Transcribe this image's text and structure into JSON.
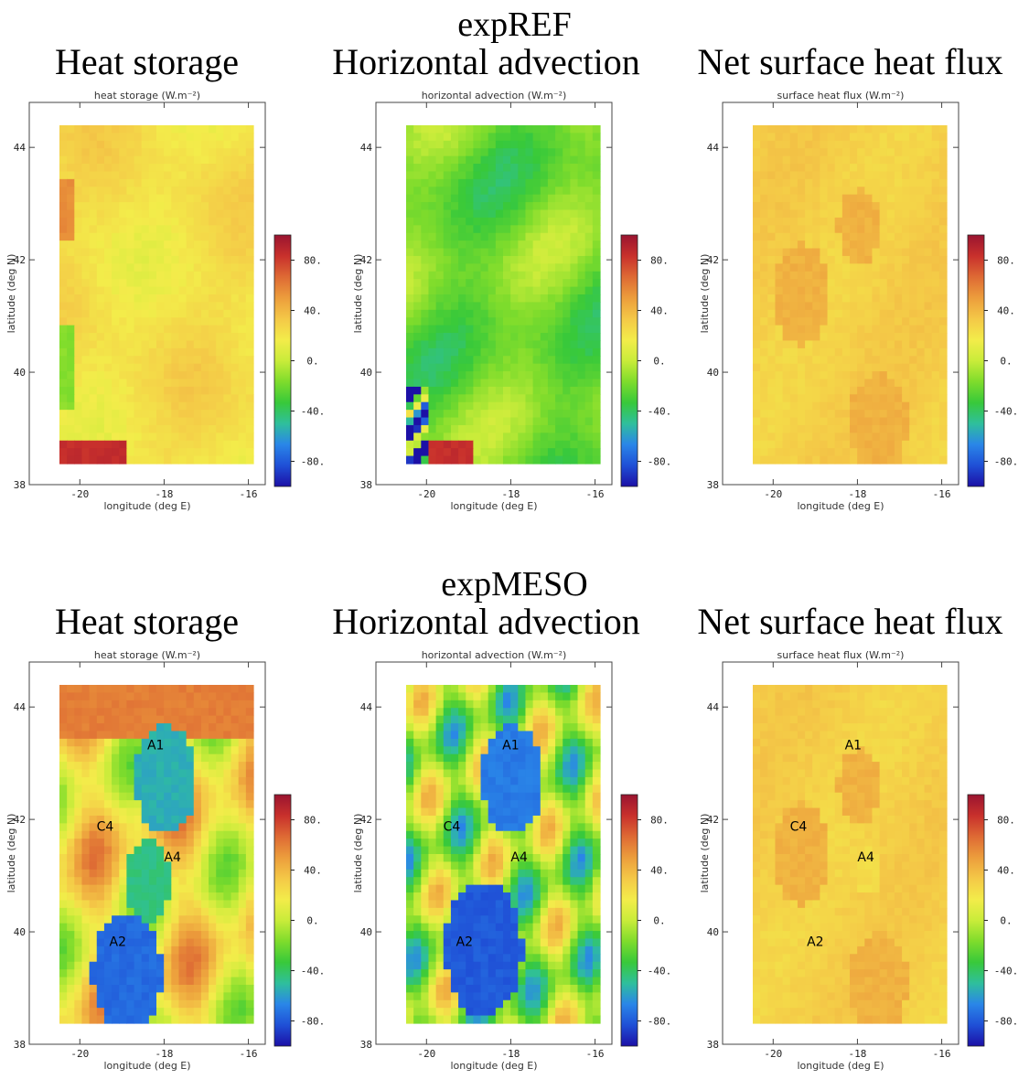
{
  "exp_titles": [
    "expREF",
    "expMESO"
  ],
  "panel_titles": [
    "Heat storage",
    "Horizontal advection",
    "Net surface heat flux"
  ],
  "colors": {
    "scale": [
      "#1c10a6",
      "#1f4fd6",
      "#2a86e8",
      "#2fbf9c",
      "#38c93a",
      "#7fdc2c",
      "#c9ec3a",
      "#f3ec4a",
      "#f4c847",
      "#ec9d3c",
      "#de6a34",
      "#c8302c",
      "#9a1430"
    ],
    "frame": "#444444"
  },
  "chart_data": [
    {
      "type": "heatmap",
      "title": "heat storage (W.m⁻²)",
      "xlabel": "longitude (deg E)",
      "ylabel": "latitude (deg N)",
      "xlim": [
        -21.2,
        -15.6
      ],
      "ylim": [
        38,
        44.8
      ],
      "xticks": [
        "-20",
        "-18",
        "-16"
      ],
      "yticks": [
        "38",
        "40",
        "42",
        "44"
      ],
      "colorbar_ticks": [
        "80.",
        "40.",
        "0.",
        "-40.",
        "-80."
      ],
      "vmin": -100,
      "vmax": 100,
      "markers": []
    },
    {
      "type": "heatmap",
      "title": "horizontal advection (W.m⁻²)",
      "xlabel": "longitude (deg E)",
      "ylabel": "latitude (deg N)",
      "xlim": [
        -21.2,
        -15.6
      ],
      "ylim": [
        38,
        44.8
      ],
      "xticks": [
        "-20",
        "-18",
        "-16"
      ],
      "yticks": [
        "38",
        "40",
        "42",
        "44"
      ],
      "colorbar_ticks": [
        "80.",
        "40.",
        "0.",
        "-40.",
        "-80."
      ],
      "vmin": -100,
      "vmax": 100,
      "markers": []
    },
    {
      "type": "heatmap",
      "title": "surface heat flux (W.m⁻²)",
      "xlabel": "longitude (deg E)",
      "ylabel": "latitude (deg N)",
      "xlim": [
        -21.2,
        -15.6
      ],
      "ylim": [
        38,
        44.8
      ],
      "xticks": [
        "-20",
        "-18",
        "-16"
      ],
      "yticks": [
        "38",
        "40",
        "42",
        "44"
      ],
      "colorbar_ticks": [
        "80.",
        "40.",
        "0.",
        "-40.",
        "-80."
      ],
      "vmin": -100,
      "vmax": 100,
      "markers": []
    },
    {
      "type": "heatmap",
      "title": "heat storage (W.m⁻²)",
      "xlabel": "longitude (deg E)",
      "ylabel": "latitude (deg N)",
      "xlim": [
        -21.2,
        -15.6
      ],
      "ylim": [
        38,
        44.8
      ],
      "xticks": [
        "-20",
        "-18",
        "-16"
      ],
      "yticks": [
        "38",
        "40",
        "42",
        "44"
      ],
      "colorbar_ticks": [
        "80.",
        "40.",
        "0.",
        "-40.",
        "-80."
      ],
      "vmin": -100,
      "vmax": 100,
      "markers": [
        {
          "label": "A1",
          "lon": -18.2,
          "lat": 43.25
        },
        {
          "label": "C4",
          "lon": -19.4,
          "lat": 41.8
        },
        {
          "label": "A4",
          "lon": -17.8,
          "lat": 41.25
        },
        {
          "label": "A2",
          "lon": -19.1,
          "lat": 39.75
        }
      ]
    },
    {
      "type": "heatmap",
      "title": "horizontal advection (W.m⁻²)",
      "xlabel": "longitude (deg E)",
      "ylabel": "latitude (deg N)",
      "xlim": [
        -21.2,
        -15.6
      ],
      "ylim": [
        38,
        44.8
      ],
      "xticks": [
        "-20",
        "-18",
        "-16"
      ],
      "yticks": [
        "38",
        "40",
        "42",
        "44"
      ],
      "colorbar_ticks": [
        "80.",
        "40.",
        "0.",
        "-40.",
        "-80."
      ],
      "vmin": -100,
      "vmax": 100,
      "markers": [
        {
          "label": "A1",
          "lon": -18.0,
          "lat": 43.25
        },
        {
          "label": "C4",
          "lon": -19.4,
          "lat": 41.8
        },
        {
          "label": "A4",
          "lon": -17.8,
          "lat": 41.25
        },
        {
          "label": "A2",
          "lon": -19.1,
          "lat": 39.75
        }
      ]
    },
    {
      "type": "heatmap",
      "title": "surface heat flux (W.m⁻²)",
      "xlabel": "longitude (deg E)",
      "ylabel": "latitude (deg N)",
      "xlim": [
        -21.2,
        -15.6
      ],
      "ylim": [
        38,
        44.8
      ],
      "xticks": [
        "-20",
        "-18",
        "-16"
      ],
      "yticks": [
        "38",
        "40",
        "42",
        "44"
      ],
      "colorbar_ticks": [
        "80.",
        "40.",
        "0.",
        "-40.",
        "-80."
      ],
      "vmin": -100,
      "vmax": 100,
      "markers": [
        {
          "label": "A1",
          "lon": -18.1,
          "lat": 43.25
        },
        {
          "label": "C4",
          "lon": -19.4,
          "lat": 41.8
        },
        {
          "label": "A4",
          "lon": -17.8,
          "lat": 41.25
        },
        {
          "label": "A2",
          "lon": -19.0,
          "lat": 39.75
        }
      ]
    }
  ]
}
